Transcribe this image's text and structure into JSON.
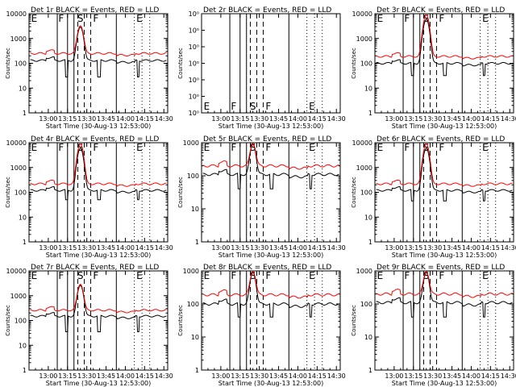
{
  "figure": {
    "background": "#ffffff",
    "colors": {
      "events": "#000000",
      "lld": "#ff0000",
      "axes": "#000000"
    }
  },
  "chart_data": [
    {
      "id": "det1",
      "type": "line",
      "title": "Det 1r  BLACK = Events, RED = LLD",
      "xlabel": "Start Time (30-Aug-13 12:53:00)",
      "ylabel": "Counts/sec",
      "yscale": "log",
      "ylim": [
        1,
        10000
      ],
      "yticks": [
        "1",
        "10",
        "100",
        "1000",
        "10000"
      ],
      "xlim_minutes": [
        -8,
        100
      ],
      "xticks": [
        "13:00",
        "13:15",
        "13:30",
        "13:45",
        "14:00",
        "14:15",
        "14:30"
      ],
      "solid_markers_minutes": [
        14,
        22,
        27,
        60
      ],
      "dashed_markers_minutes": [
        30,
        35,
        40
      ],
      "dotted_markers_minutes": [
        74,
        80,
        86
      ],
      "segment_labels": [
        "E",
        "F",
        "S",
        "F",
        "E"
      ],
      "series": [
        {
          "name": "Events",
          "color": "#000000",
          "base": 130,
          "flare_peak": 2900,
          "drop": 28
        },
        {
          "name": "LLD",
          "color": "#ff0000",
          "base": 250,
          "flare_peak": 3300,
          "drop": 0
        }
      ]
    },
    {
      "id": "det2",
      "type": "line",
      "title": "Det 2r  BLACK = Events, RED = LLD",
      "xlabel": "Start Time (30-Aug-13 12:53:00)",
      "ylabel": "Counts/sec",
      "yscale": "log",
      "ylim": [
        1,
        1.3
      ],
      "yticks": [
        "10⁰",
        "10⁰",
        "10⁰",
        "10⁰",
        "10⁰",
        "10⁰",
        "10⁰"
      ],
      "xlim_minutes": [
        -8,
        100
      ],
      "xticks": [
        "13:00",
        "13:15",
        "13:30",
        "13:45",
        "14:00",
        "14:15",
        "14:30"
      ],
      "solid_markers_minutes": [
        14,
        22,
        27,
        60
      ],
      "dashed_markers_minutes": [
        30,
        35,
        40
      ],
      "dotted_markers_minutes": [
        74,
        80,
        86
      ],
      "segment_labels": [
        "E",
        "F",
        "S",
        "F",
        "E"
      ],
      "series": []
    },
    {
      "id": "det3",
      "type": "line",
      "title": "Det 3r  BLACK = Events, RED = LLD",
      "xlabel": "Start Time (30-Aug-13 12:53:00)",
      "ylabel": "Counts/sec",
      "yscale": "log",
      "ylim": [
        1,
        10000
      ],
      "yticks": [
        "1",
        "10",
        "100",
        "1000",
        "10000"
      ],
      "xlim_minutes": [
        -8,
        100
      ],
      "xticks": [
        "13:00",
        "13:15",
        "13:30",
        "13:45",
        "14:00",
        "14:15",
        "14:30"
      ],
      "solid_markers_minutes": [
        14,
        22,
        27,
        60
      ],
      "dashed_markers_minutes": [
        30,
        35,
        40
      ],
      "dotted_markers_minutes": [
        74,
        80,
        86
      ],
      "segment_labels": [
        "E",
        "F",
        "S",
        "F",
        "E"
      ],
      "series": [
        {
          "name": "Events",
          "color": "#000000",
          "base": 100,
          "flare_peak": 6000,
          "drop": 32
        },
        {
          "name": "LLD",
          "color": "#ff0000",
          "base": 190,
          "flare_peak": 9000,
          "drop": 0
        }
      ]
    },
    {
      "id": "det4",
      "type": "line",
      "title": "Det 4r  BLACK = Events, RED = LLD",
      "xlabel": "Start Time (30-Aug-13 12:53:00)",
      "ylabel": "Counts/sec",
      "yscale": "log",
      "ylim": [
        1,
        10000
      ],
      "yticks": [
        "1",
        "10",
        "100",
        "1000",
        "10000"
      ],
      "xlim_minutes": [
        -8,
        100
      ],
      "xticks": [
        "13:00",
        "13:15",
        "13:30",
        "13:45",
        "14:00",
        "14:15",
        "14:30"
      ],
      "solid_markers_minutes": [
        14,
        22,
        27,
        60
      ],
      "dashed_markers_minutes": [
        30,
        35,
        40
      ],
      "dotted_markers_minutes": [
        74,
        80,
        86
      ],
      "segment_labels": [
        "E",
        "F",
        "S",
        "F",
        "E"
      ],
      "series": [
        {
          "name": "Events",
          "color": "#000000",
          "base": 120,
          "flare_peak": 6000,
          "drop": 50
        },
        {
          "name": "LLD",
          "color": "#ff0000",
          "base": 220,
          "flare_peak": 9000,
          "drop": 0
        }
      ]
    },
    {
      "id": "det5",
      "type": "line",
      "title": "Det 5r  BLACK = Events, RED = LLD",
      "xlabel": "Start Time (30-Aug-13 12:53:00)",
      "ylabel": "Counts/sec",
      "yscale": "log",
      "ylim": [
        1,
        1000
      ],
      "yticks": [
        "1",
        "10",
        "100",
        "1000"
      ],
      "xlim_minutes": [
        -8,
        100
      ],
      "xticks": [
        "13:00",
        "13:15",
        "13:30",
        "13:45",
        "14:00",
        "14:15",
        "14:30"
      ],
      "solid_markers_minutes": [
        14,
        22,
        27,
        60
      ],
      "dashed_markers_minutes": [
        30,
        35,
        40
      ],
      "dotted_markers_minutes": [
        74,
        80,
        86
      ],
      "segment_labels": [
        "E",
        "F",
        "S",
        "F",
        "E"
      ],
      "series": [
        {
          "name": "Events",
          "color": "#000000",
          "base": 110,
          "flare_peak": 900,
          "drop": 40
        },
        {
          "name": "LLD",
          "color": "#ff0000",
          "base": 200,
          "flare_peak": 950,
          "drop": 0
        }
      ]
    },
    {
      "id": "det6",
      "type": "line",
      "title": "Det 6r  BLACK = Events, RED = LLD",
      "xlabel": "Start Time (30-Aug-13 12:53:00)",
      "ylabel": "Counts/sec",
      "yscale": "log",
      "ylim": [
        1,
        10000
      ],
      "yticks": [
        "1",
        "10",
        "100",
        "1000",
        "10000"
      ],
      "xlim_minutes": [
        -8,
        100
      ],
      "xticks": [
        "13:00",
        "13:15",
        "13:30",
        "13:45",
        "14:00",
        "14:15",
        "14:30"
      ],
      "solid_markers_minutes": [
        14,
        22,
        27,
        60
      ],
      "dashed_markers_minutes": [
        30,
        35,
        40
      ],
      "dotted_markers_minutes": [
        74,
        80,
        86
      ],
      "segment_labels": [
        "E",
        "F",
        "S",
        "F",
        "E"
      ],
      "series": [
        {
          "name": "Events",
          "color": "#000000",
          "base": 120,
          "flare_peak": 6000,
          "drop": 45
        },
        {
          "name": "LLD",
          "color": "#ff0000",
          "base": 220,
          "flare_peak": 9000,
          "drop": 0
        }
      ]
    },
    {
      "id": "det7",
      "type": "line",
      "title": "Det 7r  BLACK = Events, RED = LLD",
      "xlabel": "Start Time (30-Aug-13 12:53:00)",
      "ylabel": "Counts/sec",
      "yscale": "log",
      "ylim": [
        1,
        10000
      ],
      "yticks": [
        "1",
        "10",
        "100",
        "1000",
        "10000"
      ],
      "xlim_minutes": [
        -8,
        100
      ],
      "xticks": [
        "13:00",
        "13:15",
        "13:30",
        "13:45",
        "14:00",
        "14:15",
        "14:30"
      ],
      "solid_markers_minutes": [
        14,
        22,
        27,
        60
      ],
      "dashed_markers_minutes": [
        30,
        35,
        40
      ],
      "dotted_markers_minutes": [
        74,
        80,
        86
      ],
      "segment_labels": [
        "E",
        "F",
        "S",
        "F",
        "E"
      ],
      "series": [
        {
          "name": "Events",
          "color": "#000000",
          "base": 150,
          "flare_peak": 2600,
          "drop": 35
        },
        {
          "name": "LLD",
          "color": "#ff0000",
          "base": 260,
          "flare_peak": 2900,
          "drop": 0
        }
      ]
    },
    {
      "id": "det8",
      "type": "line",
      "title": "Det 8r  BLACK = Events, RED = LLD",
      "xlabel": "Start Time (30-Aug-13 12:53:00)",
      "ylabel": "Counts/sec",
      "yscale": "log",
      "ylim": [
        1,
        1000
      ],
      "yticks": [
        "1",
        "10",
        "100",
        "1000"
      ],
      "xlim_minutes": [
        -8,
        100
      ],
      "xticks": [
        "13:00",
        "13:15",
        "13:30",
        "13:45",
        "14:00",
        "14:15",
        "14:30"
      ],
      "solid_markers_minutes": [
        14,
        22,
        27,
        60
      ],
      "dashed_markers_minutes": [
        30,
        35,
        40
      ],
      "dotted_markers_minutes": [
        74,
        80,
        86
      ],
      "segment_labels": [
        "E",
        "F",
        "S",
        "F",
        "E"
      ],
      "series": [
        {
          "name": "Events",
          "color": "#000000",
          "base": 100,
          "flare_peak": 900,
          "drop": 40
        },
        {
          "name": "LLD",
          "color": "#ff0000",
          "base": 190,
          "flare_peak": 950,
          "drop": 0
        }
      ]
    },
    {
      "id": "det9",
      "type": "line",
      "title": "Det 9r  BLACK = Events, RED = LLD",
      "xlabel": "Start Time (30-Aug-13 12:53:00)",
      "ylabel": "Counts/sec",
      "yscale": "log",
      "ylim": [
        1,
        1000
      ],
      "yticks": [
        "1",
        "10",
        "100",
        "1000"
      ],
      "xlim_minutes": [
        -8,
        100
      ],
      "xticks": [
        "13:00",
        "13:15",
        "13:30",
        "13:45",
        "14:00",
        "14:15",
        "14:30"
      ],
      "solid_markers_minutes": [
        14,
        22,
        27,
        60
      ],
      "dashed_markers_minutes": [
        30,
        35,
        40
      ],
      "dotted_markers_minutes": [
        74,
        80,
        86
      ],
      "segment_labels": [
        "E",
        "F",
        "S",
        "F",
        "E"
      ],
      "series": [
        {
          "name": "Events",
          "color": "#000000",
          "base": 110,
          "flare_peak": 900,
          "drop": 40
        },
        {
          "name": "LLD",
          "color": "#ff0000",
          "base": 200,
          "flare_peak": 950,
          "drop": 0
        }
      ]
    }
  ]
}
